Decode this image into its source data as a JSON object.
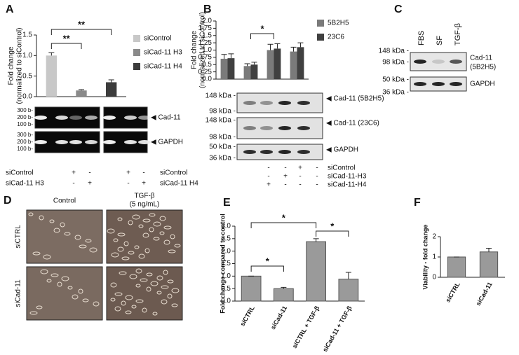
{
  "chart_data": [
    {
      "type": "bar",
      "ylabel": [
        "Fold change",
        "(normalized to siControl)"
      ],
      "categories": [
        null,
        null,
        null
      ],
      "values": [
        1.0,
        0.15,
        0.35
      ],
      "errors": [
        0.07,
        0.02,
        0.06
      ],
      "colors": [
        "#c8c8c8",
        "#8a8a8a",
        "#3c3c3c"
      ],
      "legend": [
        "siControl",
        "siCad-11 H3",
        "siCad-11 H4"
      ],
      "ylim": [
        0,
        1.5
      ],
      "yticks": [
        {
          "value": 0,
          "label": "0.0"
        },
        {
          "value": 0.5,
          "label": "0.5"
        },
        {
          "value": 1,
          "label": "1.0"
        },
        {
          "value": 1.5,
          "label": "1.5"
        }
      ],
      "annotations": [
        "**",
        "**"
      ]
    },
    {
      "type": "bar",
      "ylabel": [
        "Fold change",
        "(normalized to siControl)"
      ],
      "categories": [
        null,
        null,
        null,
        null
      ],
      "series": [
        {
          "name": "5B2H5",
          "color": "#7a7a7a",
          "values": [
            0.7,
            0.45,
            1.0,
            0.95
          ],
          "errors": [
            0.15,
            0.08,
            0.2,
            0.15
          ]
        },
        {
          "name": "23C6",
          "color": "#404040",
          "values": [
            0.72,
            0.5,
            1.05,
            1.1
          ],
          "errors": [
            0.15,
            0.08,
            0.17,
            0.15
          ]
        }
      ],
      "ylim": [
        0,
        2
      ],
      "yticks": [
        {
          "value": 0,
          "label": "0.0"
        },
        0.25,
        {
          "value": 0.5,
          "label": "0.5"
        },
        0.75,
        {
          "value": 1,
          "label": "1.0"
        },
        1.25,
        {
          "value": 1.5,
          "label": "1.5"
        },
        1.75,
        {
          "value": 2,
          "label": "2.0"
        }
      ],
      "annotations": [
        "*"
      ]
    },
    {
      "type": "bar",
      "ylabel": [
        "Fold change compared to control"
      ],
      "categories": [
        "siCTRL",
        "siCad-11",
        "siCTRL + TGF-β",
        "siCad-11 + TGF-β"
      ],
      "values": [
        1.0,
        0.5,
        2.38,
        0.88
      ],
      "errors": [
        0,
        0.05,
        0.12,
        0.27
      ],
      "color": "#9a9a9a",
      "ylim": [
        0,
        3
      ],
      "yticks": [
        {
          "value": 0,
          "label": "0.0"
        },
        {
          "value": 0.5,
          "label": "0.5"
        },
        {
          "value": 1,
          "label": "1.0"
        },
        {
          "value": 1.5,
          "label": "1.5"
        },
        {
          "value": 2,
          "label": "2.0"
        },
        {
          "value": 2.5,
          "label": "2.5"
        },
        {
          "value": 3,
          "label": "3.0"
        }
      ],
      "annotations": [
        "*",
        "*",
        "*"
      ]
    },
    {
      "type": "bar",
      "ylabel": [
        "Viability - fold change"
      ],
      "categories": [
        "siCTRL",
        "siCad-11"
      ],
      "values": [
        1.0,
        1.25
      ],
      "errors": [
        0,
        0.18
      ],
      "color": "#9a9a9a",
      "ylim": [
        0,
        2
      ],
      "yticks": [
        0,
        1,
        2
      ],
      "annotations": []
    }
  ],
  "figure": {
    "panel_labels": [
      "A",
      "B",
      "C",
      "D",
      "E",
      "F"
    ],
    "gel_a": {
      "ladder": [
        "300 b-",
        "200 b-",
        "100 b-"
      ],
      "bands": [
        "◀ Cad-11",
        "◀ GAPDH"
      ],
      "left_rows": [
        "siControl",
        "siCad-11 H3"
      ],
      "left_signs": [
        [
          "+",
          "-"
        ],
        [
          "-",
          "+"
        ]
      ],
      "right_rows": [
        "siControl",
        "siCad-11 H4"
      ],
      "right_signs": [
        [
          "+",
          "-"
        ],
        [
          "-",
          "+"
        ]
      ]
    },
    "blot_b": {
      "markers": [
        [
          "148 kDa -",
          "98 kDa -"
        ],
        [
          "148 kDa -",
          "98 kDa -"
        ],
        [
          "50 kDa -",
          "36 kDa -"
        ]
      ],
      "bands": [
        "◀ Cad-11 (5B2H5)",
        "◀ Cad-11 (23C6)",
        "◀ GAPDH"
      ],
      "rows": [
        "siControl",
        "siCad-11-H3",
        "siCad-11-H4"
      ],
      "signs": [
        [
          "-",
          "-",
          "+",
          "-"
        ],
        [
          "-",
          "+",
          "-",
          "-"
        ],
        [
          "+",
          "-",
          "-",
          "-"
        ]
      ]
    },
    "blot_c": {
      "lanes": [
        "FBS",
        "SF",
        "TGF-β"
      ],
      "markers": [
        "148 kDa -",
        "98 kDa -",
        "50 kDa -",
        "36 kDa -"
      ],
      "bands": [
        "Cad-11",
        "(5B2H5)",
        "GAPDH"
      ]
    },
    "images_d": {
      "columns": [
        [
          "Control"
        ],
        [
          "TGF-β",
          "(5 ng/mL)"
        ]
      ],
      "rows": [
        "siCTRL",
        "siCad-11"
      ]
    }
  }
}
